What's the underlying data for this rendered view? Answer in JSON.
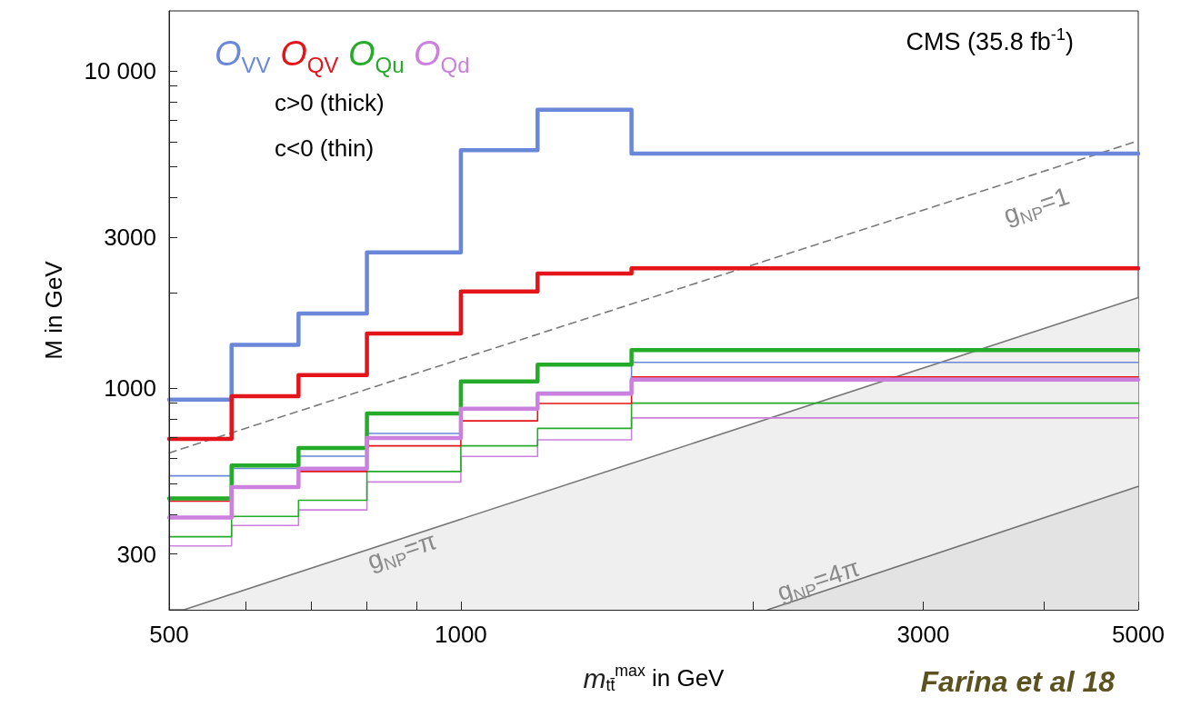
{
  "chart_data": {
    "type": "step",
    "xlabel": "m$_{tt̄}$$^{max}$ in GeV",
    "ylabel": "M in GeV",
    "log": "xy",
    "xlim": [
      500,
      5000
    ],
    "ylim": [
      200,
      15500
    ],
    "xticks": [
      500,
      {
        "value": 600,
        "label": null
      },
      {
        "value": 700,
        "label": null
      },
      {
        "value": 800,
        "label": null
      },
      {
        "value": 900,
        "label": null
      },
      1000,
      {
        "value": 2000,
        "label": null
      },
      3000,
      {
        "value": 4000,
        "label": null
      },
      5000
    ],
    "yticks": [
      300,
      {
        "value": 400,
        "label": null
      },
      {
        "value": 500,
        "label": null
      },
      {
        "value": 600,
        "label": null
      },
      {
        "value": 700,
        "label": null
      },
      {
        "value": 800,
        "label": null
      },
      {
        "value": 900,
        "label": null
      },
      1000,
      {
        "value": 2000,
        "label": null
      },
      3000,
      {
        "value": 4000,
        "label": null
      },
      {
        "value": 5000,
        "label": null
      },
      {
        "value": 6000,
        "label": null
      },
      {
        "value": 7000,
        "label": null
      },
      {
        "value": 8000,
        "label": null
      },
      {
        "value": 9000,
        "label": null
      },
      {
        "value": 10000,
        "label": "10 000"
      }
    ],
    "legend": "top left",
    "x": [
      500,
      580,
      680,
      800,
      1000,
      1200,
      1500,
      5000
    ],
    "series": [
      {
        "type": "area",
        "color": "#efefef",
        "x": [
          518,
          5000
        ],
        "values": [
          200,
          1930
        ]
      },
      {
        "type": "area",
        "color": "#e3e3e3",
        "x": [
          2073,
          5000
        ],
        "values": [
          200,
          490
        ]
      },
      {
        "type": "line",
        "color": "#7a7a7a",
        "line_style": "dashed",
        "x": [
          500,
          5000
        ],
        "values": [
          625,
          6030
        ]
      },
      {
        "color": "#cc80dd",
        "values": [
          318,
          369,
          413,
          506,
          609,
          687,
          806,
          806
        ]
      },
      {
        "color": "#25ab2a",
        "values": [
          340,
          394,
          443,
          546,
          658,
          747,
          897,
          897
        ]
      },
      {
        "color": "#e3151b",
        "values": [
          440,
          486,
          546,
          658,
          789,
          895,
          1085,
          1085
        ]
      },
      {
        "color": "#6a87d9",
        "values": [
          529,
          558,
          610,
          720,
          854,
          972,
          1206,
          1206
        ]
      },
      {
        "name": "O$_{VV}$",
        "color": "#6a87d9",
        "values": [
          920,
          1370,
          1720,
          2680,
          5640,
          7560,
          5500,
          5500
        ]
      },
      {
        "name": "O$_{QV}$",
        "color": "#e3151b",
        "values": [
          692,
          943,
          1100,
          1488,
          2020,
          2300,
          2390,
          2390
        ]
      },
      {
        "name": "O$_{Qu}$",
        "color": "#25ab2a",
        "values": [
          449,
          570,
          648,
          832,
          1050,
          1187,
          1320,
          1320
        ]
      },
      {
        "name": "O$_{Qd}$",
        "color": "#cc80dd",
        "values": [
          391,
          488,
          557,
          697,
          862,
          961,
          1065,
          1065
        ]
      }
    ],
    "annotations": [
      "c>0 (thick)",
      "c<0 (thin)",
      "CMS (35.8 fb$^{-1}$)",
      "Farina et al 18",
      "g$_{NP}$=1",
      "g$_{NP}$=π",
      "g$_{NP}$=4π"
    ]
  }
}
